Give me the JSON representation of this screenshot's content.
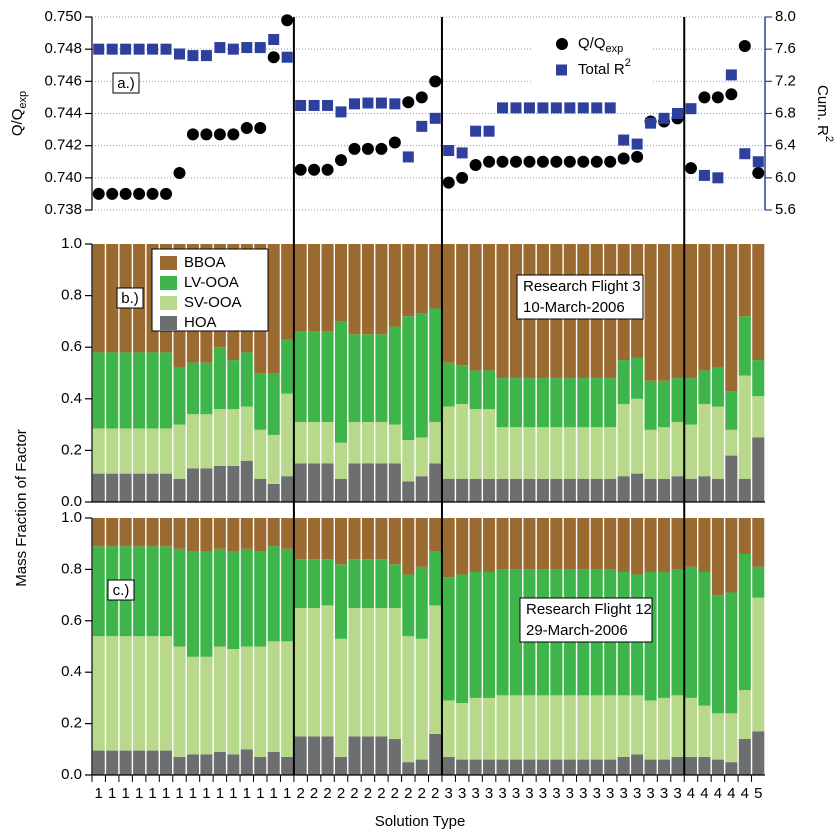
{
  "chart_data": [
    {
      "type": "scatter",
      "panel_label": "a.)",
      "ylabel": "Q/Q",
      "ylabel_sub": "exp",
      "y2label": "Cum. R",
      "y2label_sup": "2",
      "ylim": [
        0.738,
        0.75
      ],
      "yticks": [
        0.738,
        {
          "value": 0.74,
          "label": "0.740"
        },
        0.742,
        0.744,
        0.746,
        0.748,
        {
          "value": 0.75,
          "label": "0.750"
        }
      ],
      "y2lim": [
        5.6,
        8.0
      ],
      "y2ticks": [
        5.6,
        {
          "value": 6.0,
          "label": "6.0"
        },
        6.4,
        6.8,
        7.2,
        7.6,
        {
          "value": 8.0,
          "label": "8.0"
        }
      ],
      "grid": true,
      "series": [
        {
          "name": "Q/Q",
          "name_sub": "exp",
          "color": "#000000",
          "marker": "circle",
          "values": [
            0.739,
            0.739,
            0.739,
            0.739,
            0.739,
            0.739,
            0.7403,
            0.7427,
            0.7427,
            0.7427,
            0.7427,
            0.7431,
            0.7431,
            0.7475,
            0.7498,
            0.7405,
            0.7405,
            0.7405,
            0.7411,
            0.7418,
            0.7418,
            0.7418,
            0.7422,
            0.7447,
            0.745,
            0.746,
            0.7397,
            0.74,
            0.7408,
            0.741,
            0.741,
            0.741,
            0.741,
            0.741,
            0.741,
            0.741,
            0.741,
            0.741,
            0.741,
            0.7412,
            0.7413,
            0.7435,
            0.7435,
            0.7437,
            0.7406,
            0.745,
            0.745,
            0.7452,
            0.7482,
            0.7403
          ]
        },
        {
          "name": "Total R",
          "name_sup": "2",
          "color": "#2e3f9e",
          "marker": "square",
          "axis": "y2",
          "values": [
            7.6,
            7.6,
            7.6,
            7.6,
            7.6,
            7.6,
            7.54,
            7.52,
            7.52,
            7.62,
            7.6,
            7.62,
            7.62,
            7.72,
            7.5,
            6.9,
            6.9,
            6.9,
            6.82,
            6.92,
            6.93,
            6.93,
            6.92,
            6.26,
            6.64,
            6.74,
            6.34,
            6.31,
            6.58,
            6.58,
            6.87,
            6.87,
            6.87,
            6.87,
            6.87,
            6.87,
            6.87,
            6.87,
            6.87,
            6.47,
            6.42,
            6.68,
            6.74,
            6.8,
            6.86,
            6.03,
            6.0,
            7.28,
            6.3,
            6.2
          ]
        }
      ]
    },
    {
      "type": "stacked_bar",
      "panel_label": "b.)",
      "ylabel": "Mass Fraction of Factor",
      "annotation": [
        "Research Flight 3",
        "10-March-2006"
      ],
      "ylim": [
        0,
        1
      ],
      "yticks": [
        {
          "value": 0,
          "label": "0.0"
        },
        0.2,
        0.4,
        0.6,
        0.8,
        {
          "value": 1,
          "label": "1.0"
        }
      ],
      "legend": "top-left",
      "series": [
        {
          "name": "HOA",
          "color": "#6d6e70",
          "values": [
            0.11,
            0.11,
            0.11,
            0.11,
            0.11,
            0.11,
            0.09,
            0.13,
            0.13,
            0.14,
            0.14,
            0.16,
            0.09,
            0.07,
            0.1,
            0.15,
            0.15,
            0.15,
            0.09,
            0.15,
            0.15,
            0.15,
            0.15,
            0.08,
            0.1,
            0.15,
            0.09,
            0.09,
            0.09,
            0.09,
            0.09,
            0.09,
            0.09,
            0.09,
            0.09,
            0.09,
            0.09,
            0.09,
            0.09,
            0.1,
            0.11,
            0.09,
            0.09,
            0.1,
            0.09,
            0.1,
            0.09,
            0.18,
            0.09,
            0.25
          ]
        },
        {
          "name": "SV-OOA",
          "color": "#b8d98c",
          "values": [
            0.175,
            0.175,
            0.175,
            0.175,
            0.175,
            0.175,
            0.21,
            0.21,
            0.21,
            0.22,
            0.22,
            0.21,
            0.19,
            0.19,
            0.32,
            0.16,
            0.16,
            0.16,
            0.14,
            0.16,
            0.16,
            0.16,
            0.15,
            0.16,
            0.15,
            0.16,
            0.28,
            0.29,
            0.27,
            0.27,
            0.2,
            0.2,
            0.2,
            0.2,
            0.2,
            0.2,
            0.2,
            0.2,
            0.2,
            0.28,
            0.29,
            0.19,
            0.2,
            0.21,
            0.21,
            0.28,
            0.28,
            0.1,
            0.4,
            0.16
          ]
        },
        {
          "name": "LV-OOA",
          "color": "#3db54a",
          "values": [
            0.295,
            0.295,
            0.295,
            0.295,
            0.295,
            0.295,
            0.22,
            0.2,
            0.2,
            0.24,
            0.19,
            0.21,
            0.22,
            0.24,
            0.21,
            0.35,
            0.35,
            0.35,
            0.47,
            0.34,
            0.34,
            0.34,
            0.38,
            0.48,
            0.48,
            0.44,
            0.17,
            0.15,
            0.15,
            0.15,
            0.19,
            0.19,
            0.19,
            0.19,
            0.19,
            0.19,
            0.19,
            0.19,
            0.19,
            0.17,
            0.16,
            0.19,
            0.18,
            0.17,
            0.18,
            0.13,
            0.15,
            0.15,
            0.23,
            0.14
          ]
        },
        {
          "name": "BBOA",
          "color": "#9a6a30",
          "values": [
            0.42,
            0.42,
            0.42,
            0.42,
            0.42,
            0.42,
            0.48,
            0.46,
            0.46,
            0.4,
            0.45,
            0.42,
            0.5,
            0.5,
            0.37,
            0.34,
            0.34,
            0.34,
            0.3,
            0.35,
            0.35,
            0.35,
            0.32,
            0.28,
            0.27,
            0.25,
            0.46,
            0.47,
            0.49,
            0.49,
            0.52,
            0.52,
            0.52,
            0.52,
            0.52,
            0.52,
            0.52,
            0.52,
            0.52,
            0.45,
            0.44,
            0.53,
            0.53,
            0.52,
            0.52,
            0.49,
            0.48,
            0.57,
            0.28,
            0.45
          ]
        }
      ]
    },
    {
      "type": "stacked_bar",
      "panel_label": "c.)",
      "xlabel": "Solution Type",
      "annotation": [
        "Research Flight 12",
        "29-March-2006"
      ],
      "ylim": [
        0,
        1
      ],
      "yticks": [
        {
          "value": 0,
          "label": "0.0"
        },
        0.2,
        0.4,
        0.6,
        0.8,
        {
          "value": 1,
          "label": "1.0"
        }
      ],
      "categories": [
        "1",
        "1",
        "1",
        "1",
        "1",
        "1",
        "1",
        "1",
        "1",
        "1",
        "1",
        "1",
        "1",
        "1",
        "1",
        "2",
        "2",
        "2",
        "2",
        "2",
        "2",
        "2",
        "2",
        "2",
        "2",
        "2",
        "3",
        "3",
        "3",
        "3",
        "3",
        "3",
        "3",
        "3",
        "3",
        "3",
        "3",
        "3",
        "3",
        "3",
        "3",
        "3",
        "3",
        "3",
        "4",
        "4",
        "4",
        "4",
        "4",
        "5"
      ],
      "series": [
        {
          "color": "#6d6e70",
          "values": [
            0.095,
            0.095,
            0.095,
            0.095,
            0.095,
            0.095,
            0.07,
            0.08,
            0.08,
            0.09,
            0.08,
            0.1,
            0.07,
            0.09,
            0.07,
            0.15,
            0.15,
            0.15,
            0.07,
            0.15,
            0.15,
            0.15,
            0.14,
            0.05,
            0.06,
            0.16,
            0.07,
            0.06,
            0.06,
            0.06,
            0.06,
            0.06,
            0.06,
            0.06,
            0.06,
            0.06,
            0.06,
            0.06,
            0.06,
            0.07,
            0.08,
            0.06,
            0.06,
            0.07,
            0.07,
            0.07,
            0.06,
            0.05,
            0.14,
            0.17
          ]
        },
        {
          "color": "#b8d98c",
          "values": [
            0.445,
            0.445,
            0.445,
            0.445,
            0.445,
            0.445,
            0.43,
            0.38,
            0.38,
            0.41,
            0.41,
            0.4,
            0.43,
            0.43,
            0.45,
            0.5,
            0.5,
            0.51,
            0.46,
            0.5,
            0.5,
            0.5,
            0.51,
            0.49,
            0.47,
            0.5,
            0.22,
            0.22,
            0.24,
            0.24,
            0.25,
            0.25,
            0.25,
            0.25,
            0.25,
            0.25,
            0.25,
            0.25,
            0.25,
            0.24,
            0.23,
            0.23,
            0.24,
            0.24,
            0.23,
            0.2,
            0.18,
            0.19,
            0.19,
            0.52
          ]
        },
        {
          "color": "#3db54a",
          "values": [
            0.35,
            0.35,
            0.35,
            0.35,
            0.35,
            0.35,
            0.38,
            0.41,
            0.41,
            0.38,
            0.38,
            0.38,
            0.37,
            0.37,
            0.36,
            0.19,
            0.19,
            0.18,
            0.29,
            0.19,
            0.19,
            0.19,
            0.17,
            0.24,
            0.28,
            0.21,
            0.48,
            0.5,
            0.49,
            0.49,
            0.49,
            0.49,
            0.49,
            0.49,
            0.49,
            0.49,
            0.49,
            0.49,
            0.49,
            0.48,
            0.47,
            0.5,
            0.49,
            0.49,
            0.51,
            0.52,
            0.46,
            0.47,
            0.53,
            0.12
          ]
        },
        {
          "color": "#9a6a30",
          "values": [
            0.11,
            0.11,
            0.11,
            0.11,
            0.11,
            0.11,
            0.12,
            0.13,
            0.13,
            0.12,
            0.13,
            0.12,
            0.13,
            0.11,
            0.12,
            0.16,
            0.16,
            0.16,
            0.18,
            0.16,
            0.16,
            0.16,
            0.18,
            0.22,
            0.19,
            0.13,
            0.23,
            0.22,
            0.21,
            0.21,
            0.2,
            0.2,
            0.2,
            0.2,
            0.2,
            0.2,
            0.2,
            0.2,
            0.2,
            0.21,
            0.22,
            0.21,
            0.21,
            0.2,
            0.19,
            0.21,
            0.3,
            0.29,
            0.14,
            0.19
          ]
        }
      ]
    }
  ]
}
